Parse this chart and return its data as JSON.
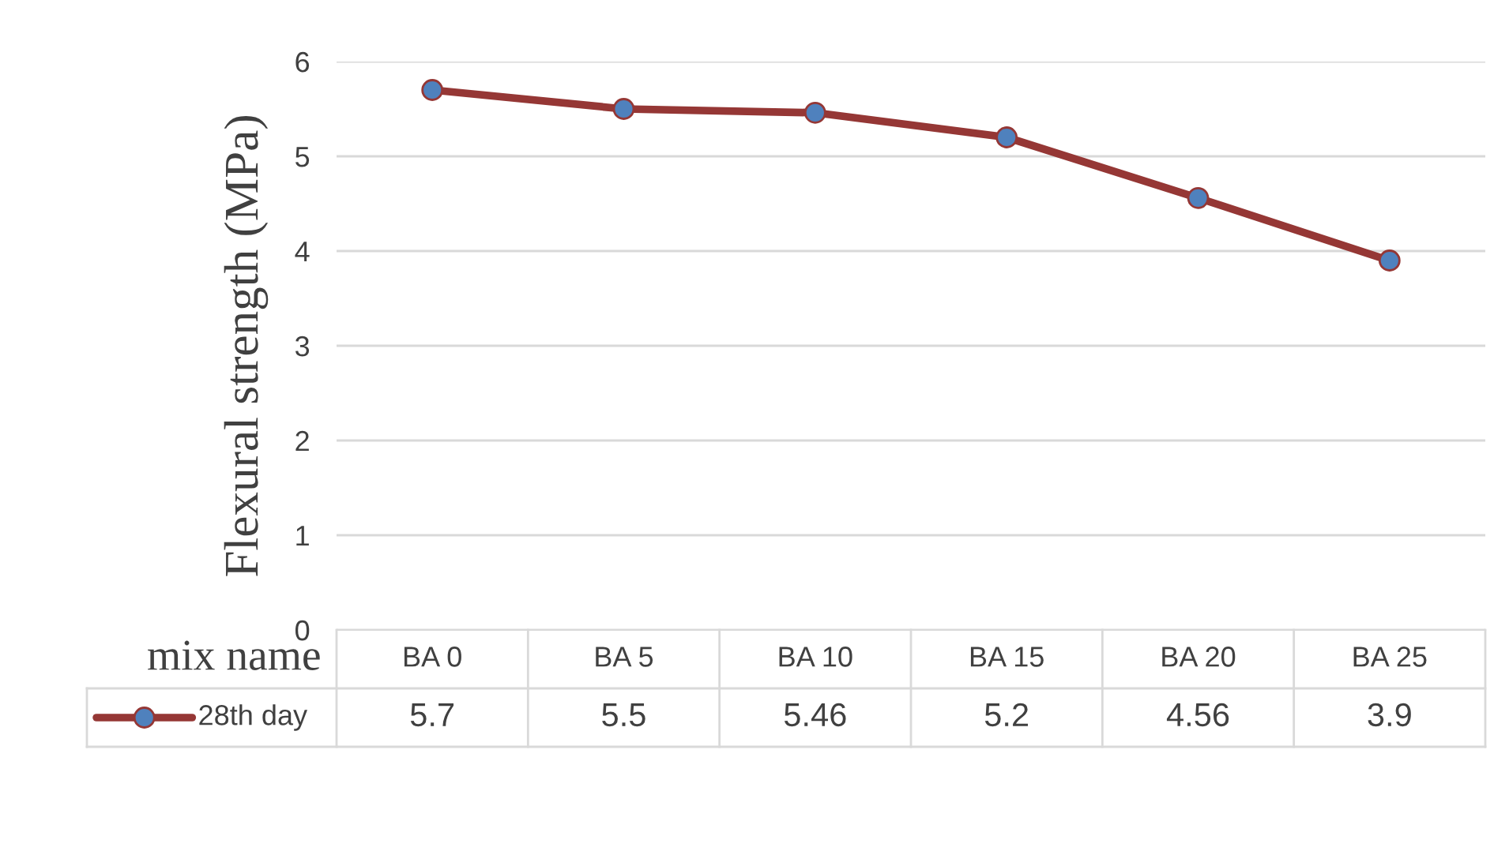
{
  "chart_data": {
    "type": "line",
    "ylabel": "Flexural strength (MPa)",
    "xlabel": "mix name",
    "categories": [
      "BA 0",
      "BA 5",
      "BA 10",
      "BA 15",
      "BA 20",
      "BA 25"
    ],
    "series": [
      {
        "name": "28th day",
        "color": "#953735",
        "values": [
          5.7,
          5.5,
          5.46,
          5.2,
          4.56,
          3.9
        ]
      }
    ],
    "ylim": [
      0,
      6
    ],
    "yticks": [
      0,
      1,
      2,
      3,
      4,
      5,
      6
    ],
    "grid": "y",
    "marker": "circle",
    "line_style": "solid",
    "data_labels": true
  }
}
